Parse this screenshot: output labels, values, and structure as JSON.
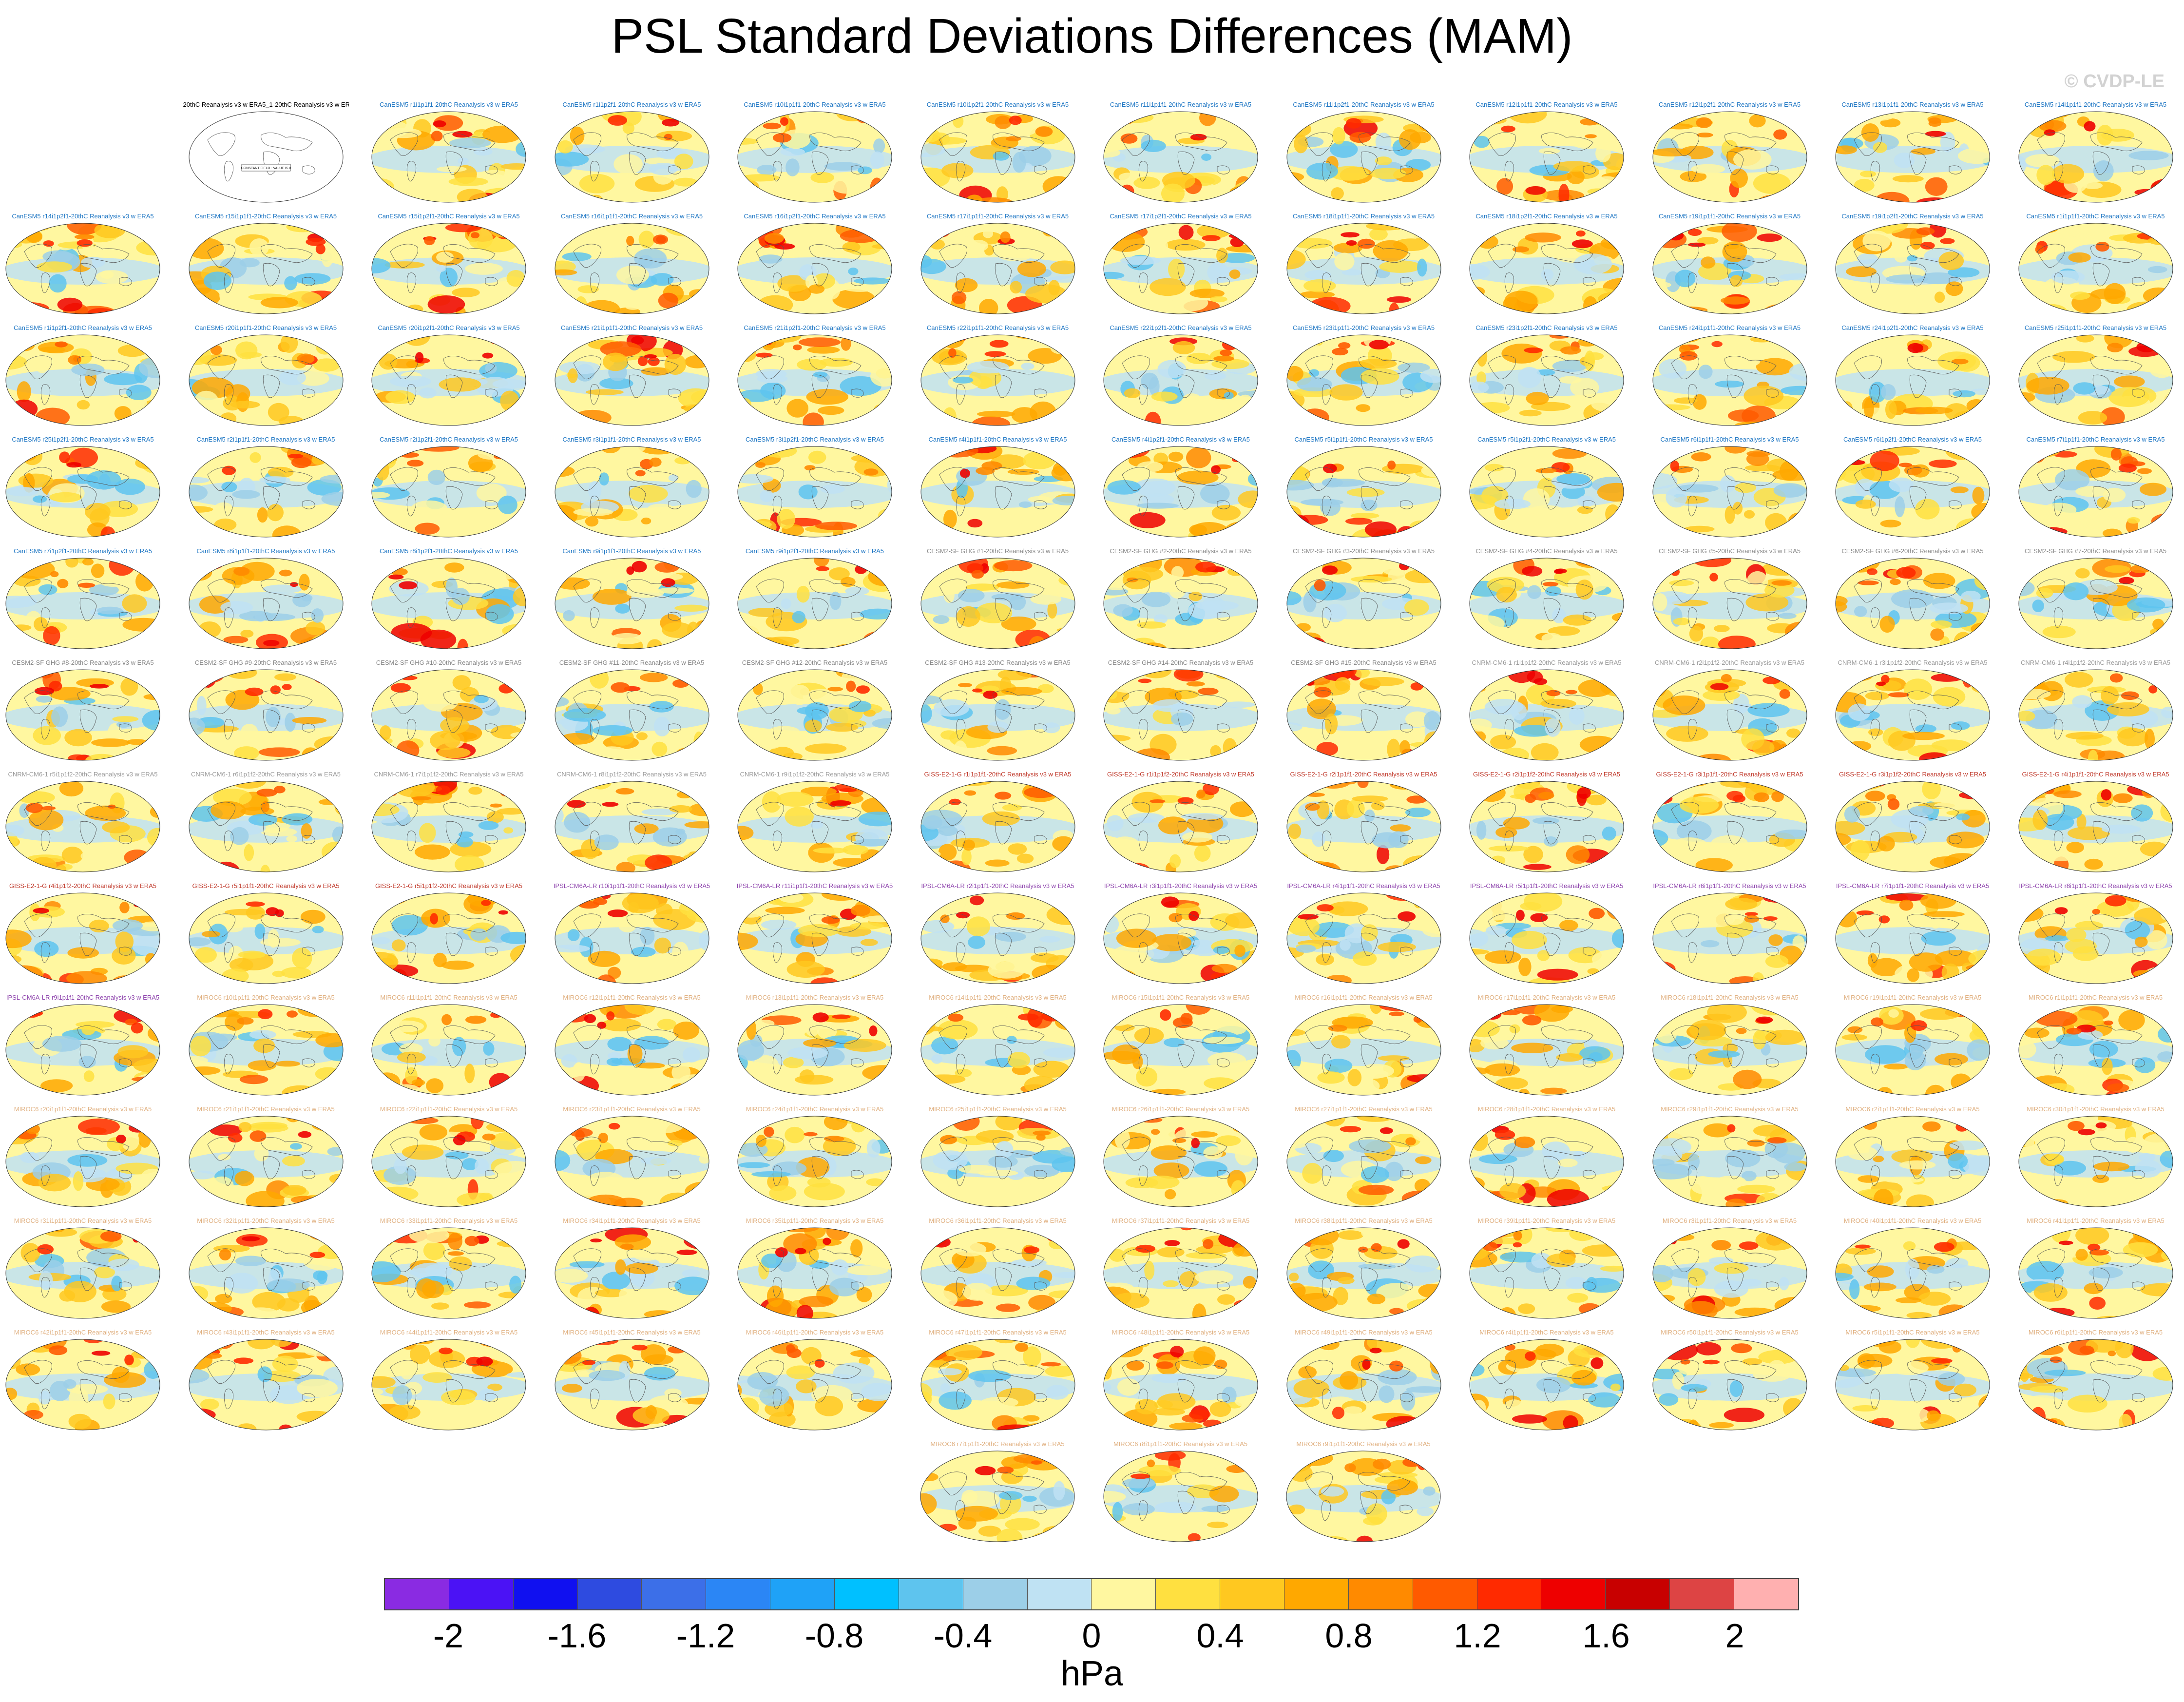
{
  "title": "PSL Standard Deviations Differences (MAM)",
  "copyright": "© CVDP-LE",
  "panels": [
    {
      "label": "20thC Reanalysis v3 w ERA5_1-20thC Reanalysis v3 w ERA5",
      "group": "reference",
      "note": "CONSTANT FIELD - VALUE IS 0"
    },
    {
      "label": "CanESM5 r1i1p1f1-20thC Reanalysis v3 w ERA5",
      "group": "canesm"
    },
    {
      "label": "CanESM5 r1i1p2f1-20thC Reanalysis v3 w ERA5",
      "group": "canesm"
    },
    {
      "label": "CanESM5 r10i1p1f1-20thC Reanalysis v3 w ERA5",
      "group": "canesm"
    },
    {
      "label": "CanESM5 r10i1p2f1-20thC Reanalysis v3 w ERA5",
      "group": "canesm"
    },
    {
      "label": "CanESM5 r11i1p1f1-20thC Reanalysis v3 w ERA5",
      "group": "canesm"
    },
    {
      "label": "CanESM5 r11i1p2f1-20thC Reanalysis v3 w ERA5",
      "group": "canesm"
    },
    {
      "label": "CanESM5 r12i1p1f1-20thC Reanalysis v3 w ERA5",
      "group": "canesm"
    },
    {
      "label": "CanESM5 r12i1p2f1-20thC Reanalysis v3 w ERA5",
      "group": "canesm"
    },
    {
      "label": "CanESM5 r13i1p1f1-20thC Reanalysis v3 w ERA5",
      "group": "canesm"
    },
    {
      "label": "CanESM5 r14i1p1f1-20thC Reanalysis v3 w ERA5",
      "group": "canesm"
    },
    {
      "label": "CanESM5 r14i1p2f1-20thC Reanalysis v3 w ERA5",
      "group": "canesm"
    },
    {
      "label": "CanESM5 r15i1p1f1-20thC Reanalysis v3 w ERA5",
      "group": "canesm"
    },
    {
      "label": "CanESM5 r15i1p2f1-20thC Reanalysis v3 w ERA5",
      "group": "canesm"
    },
    {
      "label": "CanESM5 r16i1p1f1-20thC Reanalysis v3 w ERA5",
      "group": "canesm"
    },
    {
      "label": "CanESM5 r16i1p2f1-20thC Reanalysis v3 w ERA5",
      "group": "canesm"
    },
    {
      "label": "CanESM5 r17i1p1f1-20thC Reanalysis v3 w ERA5",
      "group": "canesm"
    },
    {
      "label": "CanESM5 r17i1p2f1-20thC Reanalysis v3 w ERA5",
      "group": "canesm"
    },
    {
      "label": "CanESM5 r18i1p1f1-20thC Reanalysis v3 w ERA5",
      "group": "canesm"
    },
    {
      "label": "CanESM5 r18i1p2f1-20thC Reanalysis v3 w ERA5",
      "group": "canesm"
    },
    {
      "label": "CanESM5 r19i1p1f1-20thC Reanalysis v3 w ERA5",
      "group": "canesm"
    },
    {
      "label": "CanESM5 r19i1p2f1-20thC Reanalysis v3 w ERA5",
      "group": "canesm"
    },
    {
      "label": "CanESM5 r1i1p1f1-20thC Reanalysis v3 w ERA5",
      "group": "canesm"
    },
    {
      "label": "CanESM5 r1i1p2f1-20thC Reanalysis v3 w ERA5",
      "group": "canesm"
    },
    {
      "label": "CanESM5 r20i1p1f1-20thC Reanalysis v3 w ERA5",
      "group": "canesm"
    },
    {
      "label": "CanESM5 r20i1p2f1-20thC Reanalysis v3 w ERA5",
      "group": "canesm"
    },
    {
      "label": "CanESM5 r21i1p1f1-20thC Reanalysis v3 w ERA5",
      "group": "canesm"
    },
    {
      "label": "CanESM5 r21i1p2f1-20thC Reanalysis v3 w ERA5",
      "group": "canesm"
    },
    {
      "label": "CanESM5 r22i1p1f1-20thC Reanalysis v3 w ERA5",
      "group": "canesm"
    },
    {
      "label": "CanESM5 r22i1p2f1-20thC Reanalysis v3 w ERA5",
      "group": "canesm"
    },
    {
      "label": "CanESM5 r23i1p1f1-20thC Reanalysis v3 w ERA5",
      "group": "canesm"
    },
    {
      "label": "CanESM5 r23i1p2f1-20thC Reanalysis v3 w ERA5",
      "group": "canesm"
    },
    {
      "label": "CanESM5 r24i1p1f1-20thC Reanalysis v3 w ERA5",
      "group": "canesm"
    },
    {
      "label": "CanESM5 r24i1p2f1-20thC Reanalysis v3 w ERA5",
      "group": "canesm"
    },
    {
      "label": "CanESM5 r25i1p1f1-20thC Reanalysis v3 w ERA5",
      "group": "canesm"
    },
    {
      "label": "CanESM5 r25i1p2f1-20thC Reanalysis v3 w ERA5",
      "group": "canesm"
    },
    {
      "label": "CanESM5 r2i1p1f1-20thC Reanalysis v3 w ERA5",
      "group": "canesm"
    },
    {
      "label": "CanESM5 r2i1p2f1-20thC Reanalysis v3 w ERA5",
      "group": "canesm"
    },
    {
      "label": "CanESM5 r3i1p1f1-20thC Reanalysis v3 w ERA5",
      "group": "canesm"
    },
    {
      "label": "CanESM5 r3i1p2f1-20thC Reanalysis v3 w ERA5",
      "group": "canesm"
    },
    {
      "label": "CanESM5 r4i1p1f1-20thC Reanalysis v3 w ERA5",
      "group": "canesm"
    },
    {
      "label": "CanESM5 r4i1p2f1-20thC Reanalysis v3 w ERA5",
      "group": "canesm"
    },
    {
      "label": "CanESM5 r5i1p1f1-20thC Reanalysis v3 w ERA5",
      "group": "canesm"
    },
    {
      "label": "CanESM5 r5i1p2f1-20thC Reanalysis v3 w ERA5",
      "group": "canesm"
    },
    {
      "label": "CanESM5 r6i1p1f1-20thC Reanalysis v3 w ERA5",
      "group": "canesm"
    },
    {
      "label": "CanESM5 r6i1p2f1-20thC Reanalysis v3 w ERA5",
      "group": "canesm"
    },
    {
      "label": "CanESM5 r7i1p1f1-20thC Reanalysis v3 w ERA5",
      "group": "canesm"
    },
    {
      "label": "CanESM5 r7i1p2f1-20thC Reanalysis v3 w ERA5",
      "group": "canesm"
    },
    {
      "label": "CanESM5 r8i1p1f1-20thC Reanalysis v3 w ERA5",
      "group": "canesm"
    },
    {
      "label": "CanESM5 r8i1p2f1-20thC Reanalysis v3 w ERA5",
      "group": "canesm"
    },
    {
      "label": "CanESM5 r9i1p1f1-20thC Reanalysis v3 w ERA5",
      "group": "canesm"
    },
    {
      "label": "CanESM5 r9i1p2f1-20thC Reanalysis v3 w ERA5",
      "group": "canesm"
    },
    {
      "label": "CESM2-SF GHG #1-20thC Reanalysis v3 w ERA5",
      "group": "cesm2"
    },
    {
      "label": "CESM2-SF GHG #2-20thC Reanalysis v3 w ERA5",
      "group": "cesm2"
    },
    {
      "label": "CESM2-SF GHG #3-20thC Reanalysis v3 w ERA5",
      "group": "cesm2"
    },
    {
      "label": "CESM2-SF GHG #4-20thC Reanalysis v3 w ERA5",
      "group": "cesm2"
    },
    {
      "label": "CESM2-SF GHG #5-20thC Reanalysis v3 w ERA5",
      "group": "cesm2"
    },
    {
      "label": "CESM2-SF GHG #6-20thC Reanalysis v3 w ERA5",
      "group": "cesm2"
    },
    {
      "label": "CESM2-SF GHG #7-20thC Reanalysis v3 w ERA5",
      "group": "cesm2"
    },
    {
      "label": "CESM2-SF GHG #8-20thC Reanalysis v3 w ERA5",
      "group": "cesm2"
    },
    {
      "label": "CESM2-SF GHG #9-20thC Reanalysis v3 w ERA5",
      "group": "cesm2"
    },
    {
      "label": "CESM2-SF GHG #10-20thC Reanalysis v3 w ERA5",
      "group": "cesm2"
    },
    {
      "label": "CESM2-SF GHG #11-20thC Reanalysis v3 w ERA5",
      "group": "cesm2"
    },
    {
      "label": "CESM2-SF GHG #12-20thC Reanalysis v3 w ERA5",
      "group": "cesm2"
    },
    {
      "label": "CESM2-SF GHG #13-20thC Reanalysis v3 w ERA5",
      "group": "cesm2"
    },
    {
      "label": "CESM2-SF GHG #14-20thC Reanalysis v3 w ERA5",
      "group": "cesm2"
    },
    {
      "label": "CESM2-SF GHG #15-20thC Reanalysis v3 w ERA5",
      "group": "cesm2"
    },
    {
      "label": "CNRM-CM6-1 r1i1p1f2-20thC Reanalysis v3 w ERA5",
      "group": "cnrm"
    },
    {
      "label": "CNRM-CM6-1 r2i1p1f2-20thC Reanalysis v3 w ERA5",
      "group": "cnrm"
    },
    {
      "label": "CNRM-CM6-1 r3i1p1f2-20thC Reanalysis v3 w ERA5",
      "group": "cnrm"
    },
    {
      "label": "CNRM-CM6-1 r4i1p1f2-20thC Reanalysis v3 w ERA5",
      "group": "cnrm"
    },
    {
      "label": "CNRM-CM6-1 r5i1p1f2-20thC Reanalysis v3 w ERA5",
      "group": "cnrm"
    },
    {
      "label": "CNRM-CM6-1 r6i1p1f2-20thC Reanalysis v3 w ERA5",
      "group": "cnrm"
    },
    {
      "label": "CNRM-CM6-1 r7i1p1f2-20thC Reanalysis v3 w ERA5",
      "group": "cnrm"
    },
    {
      "label": "CNRM-CM6-1 r8i1p1f2-20thC Reanalysis v3 w ERA5",
      "group": "cnrm"
    },
    {
      "label": "CNRM-CM6-1 r9i1p1f2-20thC Reanalysis v3 w ERA5",
      "group": "cnrm"
    },
    {
      "label": "GISS-E2-1-G r1i1p1f1-20thC Reanalysis v3 w ERA5",
      "group": "giss"
    },
    {
      "label": "GISS-E2-1-G r1i1p1f2-20thC Reanalysis v3 w ERA5",
      "group": "giss"
    },
    {
      "label": "GISS-E2-1-G r2i1p1f1-20thC Reanalysis v3 w ERA5",
      "group": "giss"
    },
    {
      "label": "GISS-E2-1-G r2i1p1f2-20thC Reanalysis v3 w ERA5",
      "group": "giss"
    },
    {
      "label": "GISS-E2-1-G r3i1p1f1-20thC Reanalysis v3 w ERA5",
      "group": "giss"
    },
    {
      "label": "GISS-E2-1-G r3i1p1f2-20thC Reanalysis v3 w ERA5",
      "group": "giss"
    },
    {
      "label": "GISS-E2-1-G r4i1p1f1-20thC Reanalysis v3 w ERA5",
      "group": "giss"
    },
    {
      "label": "GISS-E2-1-G r4i1p1f2-20thC Reanalysis v3 w ERA5",
      "group": "giss"
    },
    {
      "label": "GISS-E2-1-G r5i1p1f1-20thC Reanalysis v3 w ERA5",
      "group": "giss"
    },
    {
      "label": "GISS-E2-1-G r5i1p1f2-20thC Reanalysis v3 w ERA5",
      "group": "giss"
    },
    {
      "label": "IPSL-CM6A-LR r10i1p1f1-20thC Reanalysis v3 w ERA5",
      "group": "ipsl"
    },
    {
      "label": "IPSL-CM6A-LR r11i1p1f1-20thC Reanalysis v3 w ERA5",
      "group": "ipsl"
    },
    {
      "label": "IPSL-CM6A-LR r2i1p1f1-20thC Reanalysis v3 w ERA5",
      "group": "ipsl"
    },
    {
      "label": "IPSL-CM6A-LR r3i1p1f1-20thC Reanalysis v3 w ERA5",
      "group": "ipsl"
    },
    {
      "label": "IPSL-CM6A-LR r4i1p1f1-20thC Reanalysis v3 w ERA5",
      "group": "ipsl"
    },
    {
      "label": "IPSL-CM6A-LR r5i1p1f1-20thC Reanalysis v3 w ERA5",
      "group": "ipsl"
    },
    {
      "label": "IPSL-CM6A-LR r6i1p1f1-20thC Reanalysis v3 w ERA5",
      "group": "ipsl"
    },
    {
      "label": "IPSL-CM6A-LR r7i1p1f1-20thC Reanalysis v3 w ERA5",
      "group": "ipsl"
    },
    {
      "label": "IPSL-CM6A-LR r8i1p1f1-20thC Reanalysis v3 w ERA5",
      "group": "ipsl"
    },
    {
      "label": "IPSL-CM6A-LR r9i1p1f1-20thC Reanalysis v3 w ERA5",
      "group": "ipsl"
    },
    {
      "label": "MIROC6 r10i1p1f1-20thC Reanalysis v3 w ERA5",
      "group": "miroc"
    },
    {
      "label": "MIROC6 r11i1p1f1-20thC Reanalysis v3 w ERA5",
      "group": "miroc"
    },
    {
      "label": "MIROC6 r12i1p1f1-20thC Reanalysis v3 w ERA5",
      "group": "miroc"
    },
    {
      "label": "MIROC6 r13i1p1f1-20thC Reanalysis v3 w ERA5",
      "group": "miroc"
    },
    {
      "label": "MIROC6 r14i1p1f1-20thC Reanalysis v3 w ERA5",
      "group": "miroc"
    },
    {
      "label": "MIROC6 r15i1p1f1-20thC Reanalysis v3 w ERA5",
      "group": "miroc"
    },
    {
      "label": "MIROC6 r16i1p1f1-20thC Reanalysis v3 w ERA5",
      "group": "miroc"
    },
    {
      "label": "MIROC6 r17i1p1f1-20thC Reanalysis v3 w ERA5",
      "group": "miroc"
    },
    {
      "label": "MIROC6 r18i1p1f1-20thC Reanalysis v3 w ERA5",
      "group": "miroc"
    },
    {
      "label": "MIROC6 r19i1p1f1-20thC Reanalysis v3 w ERA5",
      "group": "miroc"
    },
    {
      "label": "MIROC6 r1i1p1f1-20thC Reanalysis v3 w ERA5",
      "group": "miroc"
    },
    {
      "label": "MIROC6 r20i1p1f1-20thC Reanalysis v3 w ERA5",
      "group": "miroc"
    },
    {
      "label": "MIROC6 r21i1p1f1-20thC Reanalysis v3 w ERA5",
      "group": "miroc"
    },
    {
      "label": "MIROC6 r22i1p1f1-20thC Reanalysis v3 w ERA5",
      "group": "miroc"
    },
    {
      "label": "MIROC6 r23i1p1f1-20thC Reanalysis v3 w ERA5",
      "group": "miroc"
    },
    {
      "label": "MIROC6 r24i1p1f1-20thC Reanalysis v3 w ERA5",
      "group": "miroc"
    },
    {
      "label": "MIROC6 r25i1p1f1-20thC Reanalysis v3 w ERA5",
      "group": "miroc"
    },
    {
      "label": "MIROC6 r26i1p1f1-20thC Reanalysis v3 w ERA5",
      "group": "miroc"
    },
    {
      "label": "MIROC6 r27i1p1f1-20thC Reanalysis v3 w ERA5",
      "group": "miroc"
    },
    {
      "label": "MIROC6 r28i1p1f1-20thC Reanalysis v3 w ERA5",
      "group": "miroc"
    },
    {
      "label": "MIROC6 r29i1p1f1-20thC Reanalysis v3 w ERA5",
      "group": "miroc"
    },
    {
      "label": "MIROC6 r2i1p1f1-20thC Reanalysis v3 w ERA5",
      "group": "miroc"
    },
    {
      "label": "MIROC6 r30i1p1f1-20thC Reanalysis v3 w ERA5",
      "group": "miroc"
    },
    {
      "label": "MIROC6 r31i1p1f1-20thC Reanalysis v3 w ERA5",
      "group": "miroc"
    },
    {
      "label": "MIROC6 r32i1p1f1-20thC Reanalysis v3 w ERA5",
      "group": "miroc"
    },
    {
      "label": "MIROC6 r33i1p1f1-20thC Reanalysis v3 w ERA5",
      "group": "miroc"
    },
    {
      "label": "MIROC6 r34i1p1f1-20thC Reanalysis v3 w ERA5",
      "group": "miroc"
    },
    {
      "label": "MIROC6 r35i1p1f1-20thC Reanalysis v3 w ERA5",
      "group": "miroc"
    },
    {
      "label": "MIROC6 r36i1p1f1-20thC Reanalysis v3 w ERA5",
      "group": "miroc"
    },
    {
      "label": "MIROC6 r37i1p1f1-20thC Reanalysis v3 w ERA5",
      "group": "miroc"
    },
    {
      "label": "MIROC6 r38i1p1f1-20thC Reanalysis v3 w ERA5",
      "group": "miroc"
    },
    {
      "label": "MIROC6 r39i1p1f1-20thC Reanalysis v3 w ERA5",
      "group": "miroc"
    },
    {
      "label": "MIROC6 r3i1p1f1-20thC Reanalysis v3 w ERA5",
      "group": "miroc"
    },
    {
      "label": "MIROC6 r40i1p1f1-20thC Reanalysis v3 w ERA5",
      "group": "miroc"
    },
    {
      "label": "MIROC6 r41i1p1f1-20thC Reanalysis v3 w ERA5",
      "group": "miroc"
    },
    {
      "label": "MIROC6 r42i1p1f1-20thC Reanalysis v3 w ERA5",
      "group": "miroc"
    },
    {
      "label": "MIROC6 r43i1p1f1-20thC Reanalysis v3 w ERA5",
      "group": "miroc"
    },
    {
      "label": "MIROC6 r44i1p1f1-20thC Reanalysis v3 w ERA5",
      "group": "miroc"
    },
    {
      "label": "MIROC6 r45i1p1f1-20thC Reanalysis v3 w ERA5",
      "group": "miroc"
    },
    {
      "label": "MIROC6 r46i1p1f1-20thC Reanalysis v3 w ERA5",
      "group": "miroc"
    },
    {
      "label": "MIROC6 r47i1p1f1-20thC Reanalysis v3 w ERA5",
      "group": "miroc"
    },
    {
      "label": "MIROC6 r48i1p1f1-20thC Reanalysis v3 w ERA5",
      "group": "miroc"
    },
    {
      "label": "MIROC6 r49i1p1f1-20thC Reanalysis v3 w ERA5",
      "group": "miroc"
    },
    {
      "label": "MIROC6 r4i1p1f1-20thC Reanalysis v3 w ERA5",
      "group": "miroc"
    },
    {
      "label": "MIROC6 r50i1p1f1-20thC Reanalysis v3 w ERA5",
      "group": "miroc"
    },
    {
      "label": "MIROC6 r5i1p1f1-20thC Reanalysis v3 w ERA5",
      "group": "miroc"
    },
    {
      "label": "MIROC6 r6i1p1f1-20thC Reanalysis v3 w ERA5",
      "group": "miroc"
    },
    {
      "label": "MIROC6 r7i1p1f1-20thC Reanalysis v3 w ERA5",
      "group": "miroc"
    },
    {
      "label": "MIROC6 r8i1p1f1-20thC Reanalysis v3 w ERA5",
      "group": "miroc"
    },
    {
      "label": "MIROC6 r9i1p1f1-20thC Reanalysis v3 w ERA5",
      "group": "miroc"
    }
  ],
  "group_colors": {
    "reference": "#000000",
    "canesm": "#1f77c4",
    "cesm2": "#888888",
    "cnrm": "#9a9a9a",
    "giss": "#c0392b",
    "ipsl": "#8e44ad",
    "miroc": "#e0b080"
  },
  "chart_data": {
    "type": "heatmap",
    "title": "PSL Standard Deviations Differences (MAM)",
    "units": "hPa",
    "projection": "global Robinson maps, one panel per ensemble member",
    "colorbar": {
      "levels": [
        -2.2,
        -2.0,
        -1.8,
        -1.6,
        -1.4,
        -1.2,
        -1.0,
        -0.8,
        -0.6,
        -0.4,
        -0.2,
        0,
        0.2,
        0.4,
        0.6,
        0.8,
        1.0,
        1.2,
        1.4,
        1.6,
        1.8,
        2.0,
        2.2
      ],
      "colors": [
        "#8a2be2",
        "#4b12f5",
        "#1010f0",
        "#2e4be0",
        "#3c6fe8",
        "#2b86f5",
        "#1fa2f7",
        "#00c0ff",
        "#5ec4ee",
        "#9ccfe8",
        "#bfe2f3",
        "#fff7a0",
        "#ffe040",
        "#ffc820",
        "#ffa800",
        "#ff8a00",
        "#ff5a00",
        "#ff2a00",
        "#ee0000",
        "#c80000",
        "#dd4444",
        "#ffb0b0"
      ],
      "tick_values": [
        -2,
        -1.6,
        -1.2,
        -0.8,
        -0.4,
        0,
        0.4,
        0.8,
        1.2,
        1.6,
        2
      ],
      "tick_labels": [
        "-2",
        "-1.6",
        "-1.2",
        "-0.8",
        "-0.4",
        "0",
        "0.4",
        "0.8",
        "1.2",
        "1.6",
        "2"
      ]
    },
    "panel_count": 146
  }
}
